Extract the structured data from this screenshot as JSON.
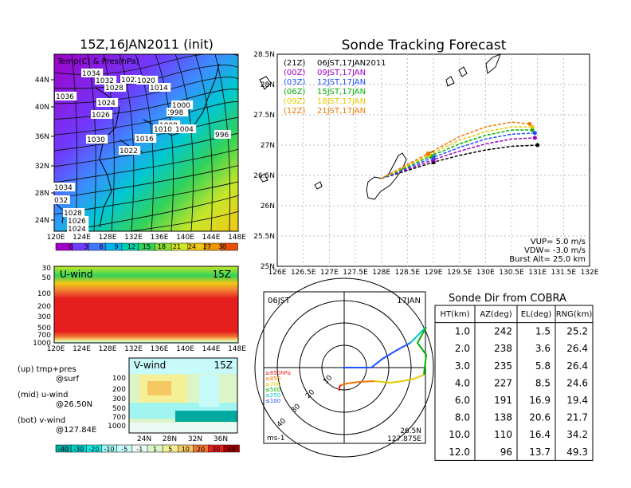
{
  "left_top": {
    "title": "15Z,16JAN2011 (init)",
    "overlay": "Temp(C) & Pres(hPa)",
    "lat_ticks": [
      "44N",
      "40N",
      "36N",
      "32N",
      "28N",
      "24N"
    ],
    "lon_ticks": [
      "120E",
      "124E",
      "128E",
      "132E",
      "136E",
      "140E",
      "144E",
      "148E"
    ],
    "pressure_labels": [
      "1034",
      "1032",
      "1022",
      "1020",
      "1036",
      "1028",
      "1014",
      "1024",
      "1000",
      "1026",
      "1002",
      "998",
      "1008",
      "1030",
      "1010",
      "1004",
      "1016",
      "996",
      "1022",
      "1034",
      "032",
      "1028",
      "1026",
      "1024"
    ],
    "colorbar_labels": [
      "0",
      "3",
      "6",
      "9",
      "12",
      "15",
      "18",
      "21",
      "24",
      "27",
      "30"
    ],
    "colorbar_colors": [
      "#a000c8",
      "#6e3cff",
      "#3c78ff",
      "#00b4f0",
      "#00d2aa",
      "#32d25a",
      "#8cdc32",
      "#d2e628",
      "#f0c814",
      "#f09600",
      "#e65000"
    ]
  },
  "u_panel": {
    "title": "U-wind",
    "time": "15Z",
    "y_ticks": [
      "30",
      "50",
      "100",
      "200",
      "300",
      "500",
      "700",
      "1000"
    ],
    "x_ticks": [
      "120E",
      "124E",
      "128E",
      "132E",
      "136E",
      "140E",
      "144E",
      "148E"
    ]
  },
  "v_panel": {
    "title": "V-wind",
    "time": "15Z",
    "y_ticks": [
      "100",
      "200",
      "300",
      "500",
      "700",
      "1000"
    ],
    "x_ticks": [
      "24N",
      "28N",
      "32N",
      "36N"
    ],
    "colorbar_labels": [
      "-40",
      "-30",
      "-20",
      "-10",
      "-5",
      "-1",
      "1",
      "5",
      "10",
      "20",
      "30",
      "40"
    ],
    "colorbar_colors": [
      "#00aaa0",
      "#00d2c8",
      "#14ebe6",
      "#a0f5f0",
      "#c8fafa",
      "#ebfaf5",
      "#dcf5c8",
      "#f5f096",
      "#f5c864",
      "#f07832",
      "#e61e1e",
      "#a00000"
    ]
  },
  "legend_notes": [
    {
      "line1": "(up) tmp+pres",
      "line2": "@surf"
    },
    {
      "line1": "(mid) u-wind",
      "line2": "@26.50N"
    },
    {
      "line1": "(bot) v-wind",
      "line2": "@127.84E"
    }
  ],
  "tracking": {
    "title": "Sonde Tracking Forecast",
    "lat_ticks": [
      "28.5N",
      "28N",
      "27.5N",
      "27N",
      "26.5N",
      "26N",
      "25.5N",
      "25N"
    ],
    "lon_ticks": [
      "126E",
      "126.5E",
      "127E",
      "127.5E",
      "128E",
      "128.5E",
      "129E",
      "129.5E",
      "130E",
      "130.5E",
      "131E",
      "131.5E",
      "132E"
    ],
    "legend": [
      {
        "code": "(21Z)",
        "time": "06JST,17JAN2011",
        "color": "#000000"
      },
      {
        "code": "(00Z)",
        "time": "09JST,17JAN",
        "color": "#a000c8"
      },
      {
        "code": "(03Z)",
        "time": "12JST,17JAN",
        "color": "#1e50ff"
      },
      {
        "code": "(06Z)",
        "time": "15JST,17JAN",
        "color": "#00b400"
      },
      {
        "code": "(09Z)",
        "time": "18JST,17JAN",
        "color": "#e6c800"
      },
      {
        "code": "(12Z)",
        "time": "21JST,17JAN",
        "color": "#f07800"
      }
    ],
    "params": [
      "VUP=  5.0  m/s",
      "VDW=  -3.0  m/s",
      "Burst Alt=  25.0  km"
    ]
  },
  "chart_data": [
    {
      "type": "line",
      "title": "Sonde Tracking Forecast",
      "xlim": [
        126,
        132
      ],
      "ylim": [
        25,
        28.5
      ],
      "series": [
        {
          "name": "(21Z) 06JST,17JAN2011",
          "x": [
            128.0,
            128.5,
            129.0,
            129.5,
            130.0,
            130.5,
            131.0
          ],
          "y": [
            26.45,
            26.58,
            26.72,
            26.83,
            26.92,
            26.98,
            27.0
          ]
        },
        {
          "name": "(00Z) 09JST,17JAN",
          "x": [
            128.0,
            128.5,
            129.0,
            129.5,
            130.0,
            130.5,
            130.95
          ],
          "y": [
            26.45,
            26.6,
            26.76,
            26.9,
            27.02,
            27.1,
            27.12
          ]
        },
        {
          "name": "(03Z) 12JST,17JAN",
          "x": [
            128.0,
            128.5,
            129.0,
            129.5,
            130.0,
            130.5,
            130.95
          ],
          "y": [
            26.45,
            26.62,
            26.8,
            26.96,
            27.1,
            27.18,
            27.2
          ]
        },
        {
          "name": "(06Z) 15JST,17JAN",
          "x": [
            128.0,
            128.5,
            128.95,
            129.5,
            130.0,
            130.5,
            130.9
          ],
          "y": [
            26.45,
            26.64,
            26.82,
            27.02,
            27.16,
            27.25,
            27.25
          ]
        },
        {
          "name": "(09Z) 18JST,17JAN",
          "x": [
            128.0,
            128.5,
            128.92,
            129.5,
            130.0,
            130.5,
            130.9
          ],
          "y": [
            26.45,
            26.66,
            26.84,
            27.08,
            27.22,
            27.3,
            27.3
          ]
        },
        {
          "name": "(12Z) 21JST,17JAN",
          "x": [
            128.0,
            128.5,
            128.9,
            129.5,
            130.0,
            130.5,
            130.85
          ],
          "y": [
            26.45,
            26.68,
            26.86,
            27.14,
            27.3,
            27.38,
            27.35
          ]
        }
      ]
    },
    {
      "type": "table",
      "title": "Sonde Dir from COBRA",
      "columns": [
        "HT(km)",
        "AZ(deg)",
        "EL(deg)",
        "RNG(km)"
      ],
      "rows": [
        [
          "1.0",
          "242",
          "1.5",
          "25.2"
        ],
        [
          "2.0",
          "238",
          "3.6",
          "26.4"
        ],
        [
          "3.0",
          "235",
          "5.8",
          "26.4"
        ],
        [
          "4.0",
          "227",
          "8.5",
          "24.6"
        ],
        [
          "6.0",
          "191",
          "16.9",
          "19.4"
        ],
        [
          "8.0",
          "138",
          "20.6",
          "21.7"
        ],
        [
          "10.0",
          "110",
          "16.4",
          "34.2"
        ],
        [
          "12.0",
          "96",
          "13.7",
          "49.3"
        ]
      ]
    }
  ],
  "polar": {
    "time_label": "06JST",
    "date_label": "17JAN",
    "ring_labels": [
      "10",
      "20",
      "30",
      "40"
    ],
    "level_legend": [
      {
        "label": "≥850hPa",
        "color": "#e61e1e"
      },
      {
        "label": "≤850",
        "color": "#f07800"
      },
      {
        "label": "≤700",
        "color": "#e6c800"
      },
      {
        "label": "≤500",
        "color": "#00b400"
      },
      {
        "label": "≤250",
        "color": "#00c8c8"
      },
      {
        "label": "≤100",
        "color": "#1e50ff"
      }
    ],
    "unit": "ms-1",
    "location_lat": "26.5N",
    "location_lon": "127.875E"
  }
}
